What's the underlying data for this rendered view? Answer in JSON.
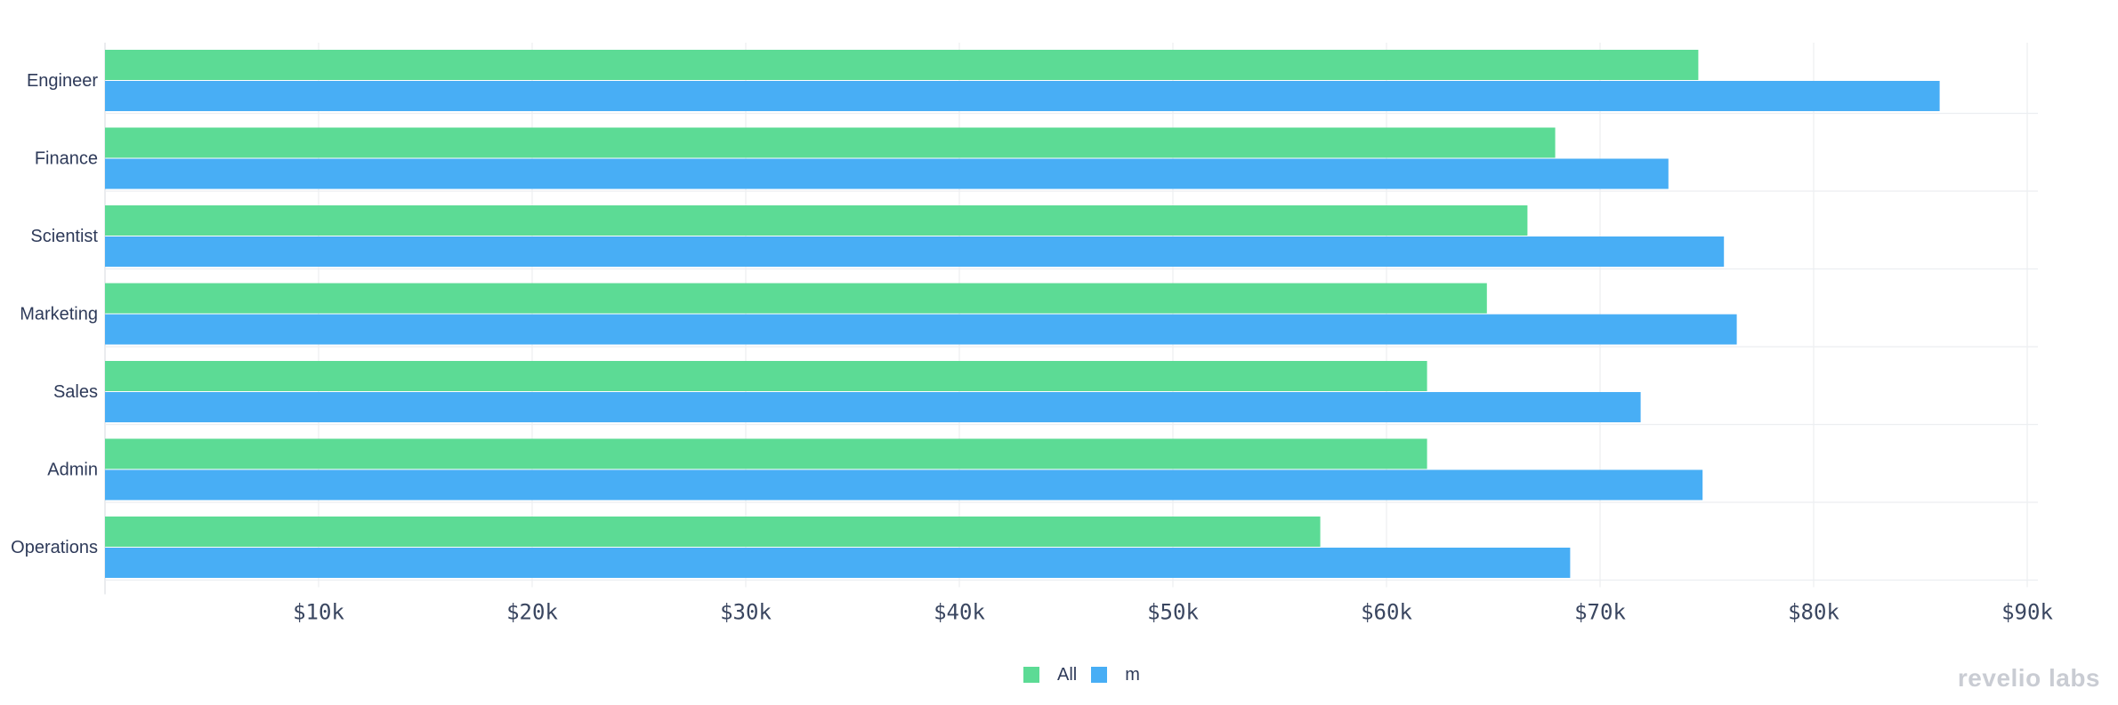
{
  "chart_data": {
    "type": "bar",
    "orientation": "horizontal",
    "categories": [
      "Engineer",
      "Finance",
      "Scientist",
      "Marketing",
      "Sales",
      "Admin",
      "Operations"
    ],
    "series": [
      {
        "name": "All",
        "color": "#5cdb95",
        "values": [
          74600,
          67900,
          66600,
          64700,
          61900,
          61900,
          56900
        ]
      },
      {
        "name": "m",
        "color": "#48aef5",
        "values": [
          85900,
          73200,
          75800,
          76400,
          71900,
          74800,
          68600
        ]
      }
    ],
    "xticks": [
      10000,
      20000,
      30000,
      40000,
      50000,
      60000,
      70000,
      80000,
      90000
    ],
    "xtick_labels": [
      "$10k",
      "$20k",
      "$30k",
      "$40k",
      "$50k",
      "$60k",
      "$70k",
      "$80k",
      "$90k"
    ],
    "xlim": [
      0,
      90500
    ],
    "grid": true,
    "legend_position": "bottom-center"
  },
  "watermark": "revelio labs"
}
